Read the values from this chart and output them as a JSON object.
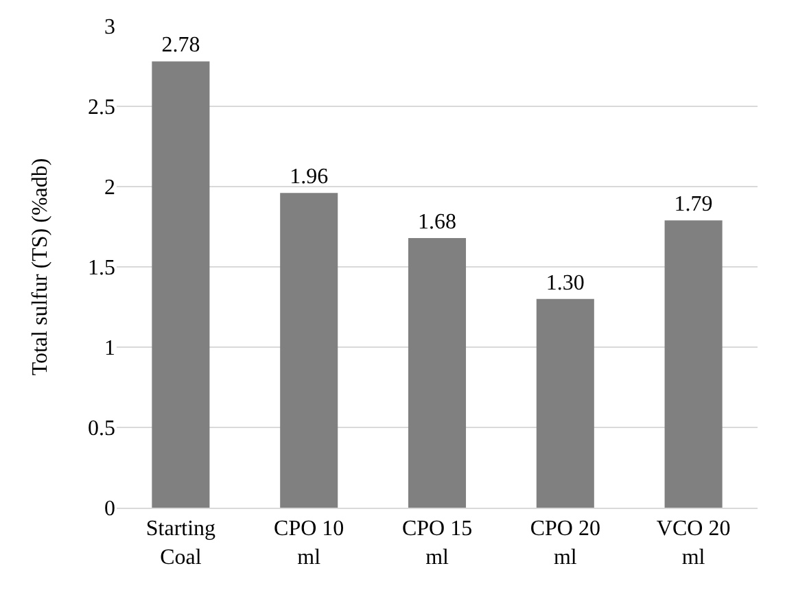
{
  "chart_data": {
    "type": "bar",
    "ylabel": "Total sulfur (TS) (%adb)",
    "categories": [
      "Starting Coal",
      "CPO 10 ml",
      "CPO 15 ml",
      "CPO 20 ml",
      "VCO 20 ml"
    ],
    "values": [
      2.78,
      1.96,
      1.68,
      1.3,
      1.79
    ],
    "value_labels": [
      "2.78",
      "1.96",
      "1.68",
      "1.30",
      "1.79"
    ],
    "color": "#808080",
    "ylim": [
      0,
      3
    ],
    "yticks": [
      0,
      0.5,
      1,
      1.5,
      2,
      2.5,
      3
    ],
    "grid": "y"
  }
}
